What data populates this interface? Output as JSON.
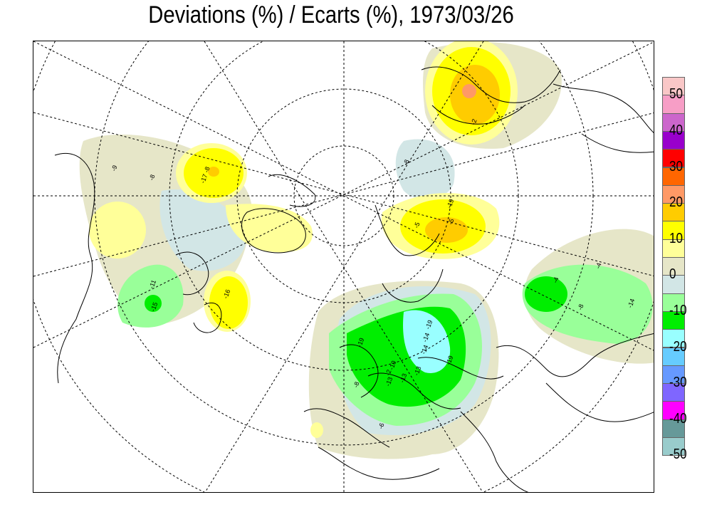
{
  "title": "Deviations (%) / Ecarts (%), 1973/03/26",
  "legend": {
    "colors": [
      "#f9c7c7",
      "#f79ec6",
      "#cc66cc",
      "#9900cc",
      "#ff0000",
      "#ff6600",
      "#ff9966",
      "#ffcc00",
      "#ffff00",
      "#ffff99",
      "#e6e6c8",
      "#d2e6e6",
      "#99ff99",
      "#00ee00",
      "#99ffff",
      "#66ccff",
      "#6699ff",
      "#7f66ff",
      "#ff00ff",
      "#669999",
      "#99cccc"
    ],
    "labels": [
      "50",
      "40",
      "30",
      "20",
      "10",
      "0",
      "-10",
      "-20",
      "-30",
      "-40",
      "-50"
    ]
  },
  "contour_labels": [
    "-9",
    "-8",
    "-8",
    "-17",
    "-11",
    "-15",
    "-16",
    "-19",
    "-19",
    "-14",
    "-10",
    "-13",
    "-13",
    "-14",
    "-19",
    "-13",
    "-6",
    "-8",
    "-2",
    "-19",
    "-5",
    "-5",
    "-4",
    "-4",
    "-8",
    "-14",
    "-8",
    "-2"
  ]
}
